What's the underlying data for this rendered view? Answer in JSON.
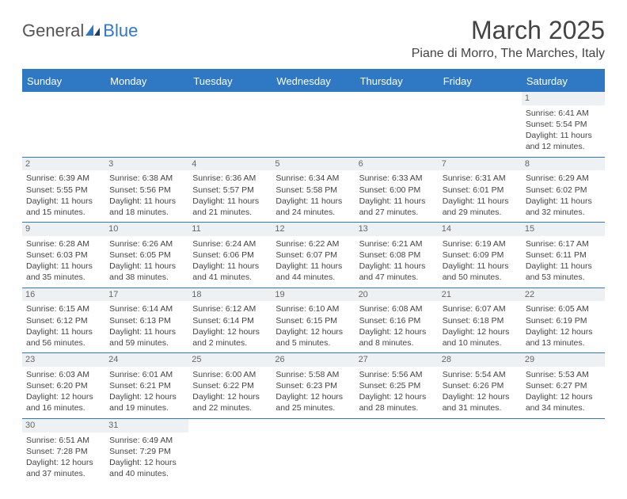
{
  "logo": {
    "part1": "General",
    "part2": "Blue"
  },
  "title": "March 2025",
  "location": "Piane di Morro, The Marches, Italy",
  "colors": {
    "accent": "#2f78c4",
    "dayHeaderBg": "#eef1f3",
    "text": "#444444",
    "logoGray": "#555555",
    "bg": "#ffffff"
  },
  "dayNames": [
    "Sunday",
    "Monday",
    "Tuesday",
    "Wednesday",
    "Thursday",
    "Friday",
    "Saturday"
  ],
  "weeks": [
    [
      null,
      null,
      null,
      null,
      null,
      null,
      {
        "n": "1",
        "sr": "Sunrise: 6:41 AM",
        "ss": "Sunset: 5:54 PM",
        "d1": "Daylight: 11 hours",
        "d2": "and 12 minutes."
      }
    ],
    [
      {
        "n": "2",
        "sr": "Sunrise: 6:39 AM",
        "ss": "Sunset: 5:55 PM",
        "d1": "Daylight: 11 hours",
        "d2": "and 15 minutes."
      },
      {
        "n": "3",
        "sr": "Sunrise: 6:38 AM",
        "ss": "Sunset: 5:56 PM",
        "d1": "Daylight: 11 hours",
        "d2": "and 18 minutes."
      },
      {
        "n": "4",
        "sr": "Sunrise: 6:36 AM",
        "ss": "Sunset: 5:57 PM",
        "d1": "Daylight: 11 hours",
        "d2": "and 21 minutes."
      },
      {
        "n": "5",
        "sr": "Sunrise: 6:34 AM",
        "ss": "Sunset: 5:58 PM",
        "d1": "Daylight: 11 hours",
        "d2": "and 24 minutes."
      },
      {
        "n": "6",
        "sr": "Sunrise: 6:33 AM",
        "ss": "Sunset: 6:00 PM",
        "d1": "Daylight: 11 hours",
        "d2": "and 27 minutes."
      },
      {
        "n": "7",
        "sr": "Sunrise: 6:31 AM",
        "ss": "Sunset: 6:01 PM",
        "d1": "Daylight: 11 hours",
        "d2": "and 29 minutes."
      },
      {
        "n": "8",
        "sr": "Sunrise: 6:29 AM",
        "ss": "Sunset: 6:02 PM",
        "d1": "Daylight: 11 hours",
        "d2": "and 32 minutes."
      }
    ],
    [
      {
        "n": "9",
        "sr": "Sunrise: 6:28 AM",
        "ss": "Sunset: 6:03 PM",
        "d1": "Daylight: 11 hours",
        "d2": "and 35 minutes."
      },
      {
        "n": "10",
        "sr": "Sunrise: 6:26 AM",
        "ss": "Sunset: 6:05 PM",
        "d1": "Daylight: 11 hours",
        "d2": "and 38 minutes."
      },
      {
        "n": "11",
        "sr": "Sunrise: 6:24 AM",
        "ss": "Sunset: 6:06 PM",
        "d1": "Daylight: 11 hours",
        "d2": "and 41 minutes."
      },
      {
        "n": "12",
        "sr": "Sunrise: 6:22 AM",
        "ss": "Sunset: 6:07 PM",
        "d1": "Daylight: 11 hours",
        "d2": "and 44 minutes."
      },
      {
        "n": "13",
        "sr": "Sunrise: 6:21 AM",
        "ss": "Sunset: 6:08 PM",
        "d1": "Daylight: 11 hours",
        "d2": "and 47 minutes."
      },
      {
        "n": "14",
        "sr": "Sunrise: 6:19 AM",
        "ss": "Sunset: 6:09 PM",
        "d1": "Daylight: 11 hours",
        "d2": "and 50 minutes."
      },
      {
        "n": "15",
        "sr": "Sunrise: 6:17 AM",
        "ss": "Sunset: 6:11 PM",
        "d1": "Daylight: 11 hours",
        "d2": "and 53 minutes."
      }
    ],
    [
      {
        "n": "16",
        "sr": "Sunrise: 6:15 AM",
        "ss": "Sunset: 6:12 PM",
        "d1": "Daylight: 11 hours",
        "d2": "and 56 minutes."
      },
      {
        "n": "17",
        "sr": "Sunrise: 6:14 AM",
        "ss": "Sunset: 6:13 PM",
        "d1": "Daylight: 11 hours",
        "d2": "and 59 minutes."
      },
      {
        "n": "18",
        "sr": "Sunrise: 6:12 AM",
        "ss": "Sunset: 6:14 PM",
        "d1": "Daylight: 12 hours",
        "d2": "and 2 minutes."
      },
      {
        "n": "19",
        "sr": "Sunrise: 6:10 AM",
        "ss": "Sunset: 6:15 PM",
        "d1": "Daylight: 12 hours",
        "d2": "and 5 minutes."
      },
      {
        "n": "20",
        "sr": "Sunrise: 6:08 AM",
        "ss": "Sunset: 6:16 PM",
        "d1": "Daylight: 12 hours",
        "d2": "and 8 minutes."
      },
      {
        "n": "21",
        "sr": "Sunrise: 6:07 AM",
        "ss": "Sunset: 6:18 PM",
        "d1": "Daylight: 12 hours",
        "d2": "and 10 minutes."
      },
      {
        "n": "22",
        "sr": "Sunrise: 6:05 AM",
        "ss": "Sunset: 6:19 PM",
        "d1": "Daylight: 12 hours",
        "d2": "and 13 minutes."
      }
    ],
    [
      {
        "n": "23",
        "sr": "Sunrise: 6:03 AM",
        "ss": "Sunset: 6:20 PM",
        "d1": "Daylight: 12 hours",
        "d2": "and 16 minutes."
      },
      {
        "n": "24",
        "sr": "Sunrise: 6:01 AM",
        "ss": "Sunset: 6:21 PM",
        "d1": "Daylight: 12 hours",
        "d2": "and 19 minutes."
      },
      {
        "n": "25",
        "sr": "Sunrise: 6:00 AM",
        "ss": "Sunset: 6:22 PM",
        "d1": "Daylight: 12 hours",
        "d2": "and 22 minutes."
      },
      {
        "n": "26",
        "sr": "Sunrise: 5:58 AM",
        "ss": "Sunset: 6:23 PM",
        "d1": "Daylight: 12 hours",
        "d2": "and 25 minutes."
      },
      {
        "n": "27",
        "sr": "Sunrise: 5:56 AM",
        "ss": "Sunset: 6:25 PM",
        "d1": "Daylight: 12 hours",
        "d2": "and 28 minutes."
      },
      {
        "n": "28",
        "sr": "Sunrise: 5:54 AM",
        "ss": "Sunset: 6:26 PM",
        "d1": "Daylight: 12 hours",
        "d2": "and 31 minutes."
      },
      {
        "n": "29",
        "sr": "Sunrise: 5:53 AM",
        "ss": "Sunset: 6:27 PM",
        "d1": "Daylight: 12 hours",
        "d2": "and 34 minutes."
      }
    ],
    [
      {
        "n": "30",
        "sr": "Sunrise: 6:51 AM",
        "ss": "Sunset: 7:28 PM",
        "d1": "Daylight: 12 hours",
        "d2": "and 37 minutes."
      },
      {
        "n": "31",
        "sr": "Sunrise: 6:49 AM",
        "ss": "Sunset: 7:29 PM",
        "d1": "Daylight: 12 hours",
        "d2": "and 40 minutes."
      },
      null,
      null,
      null,
      null,
      null
    ]
  ]
}
